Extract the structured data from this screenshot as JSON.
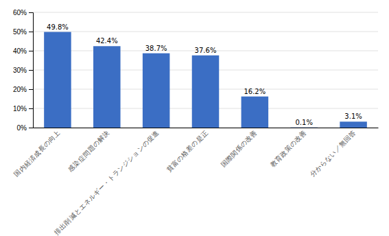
{
  "chart_data": {
    "type": "bar",
    "categories": [
      "国内経済成長の向上",
      "感染症問題の解決",
      "排出削減とエネルギー・トランジションの促進",
      "貧富の格差の是正",
      "国際関係の改善",
      "教育政策の改善",
      "分からない／無回答"
    ],
    "values": [
      49.8,
      42.4,
      38.7,
      37.6,
      16.2,
      0.1,
      3.1
    ],
    "value_labels": [
      "49.8%",
      "42.4%",
      "38.7%",
      "37.6%",
      "16.2%",
      "0.1%",
      "3.1%"
    ],
    "color": "#3B6EC4",
    "ylim": [
      0,
      60
    ],
    "yticks": [
      {
        "value": 0,
        "label": "0%"
      },
      {
        "value": 10,
        "label": "10%"
      },
      {
        "value": 20,
        "label": "20%"
      },
      {
        "value": 30,
        "label": "30%"
      },
      {
        "value": 40,
        "label": "40%"
      },
      {
        "value": 50,
        "label": "50%"
      },
      {
        "value": 60,
        "label": "60%"
      }
    ],
    "grid": true,
    "data_labels": true
  }
}
